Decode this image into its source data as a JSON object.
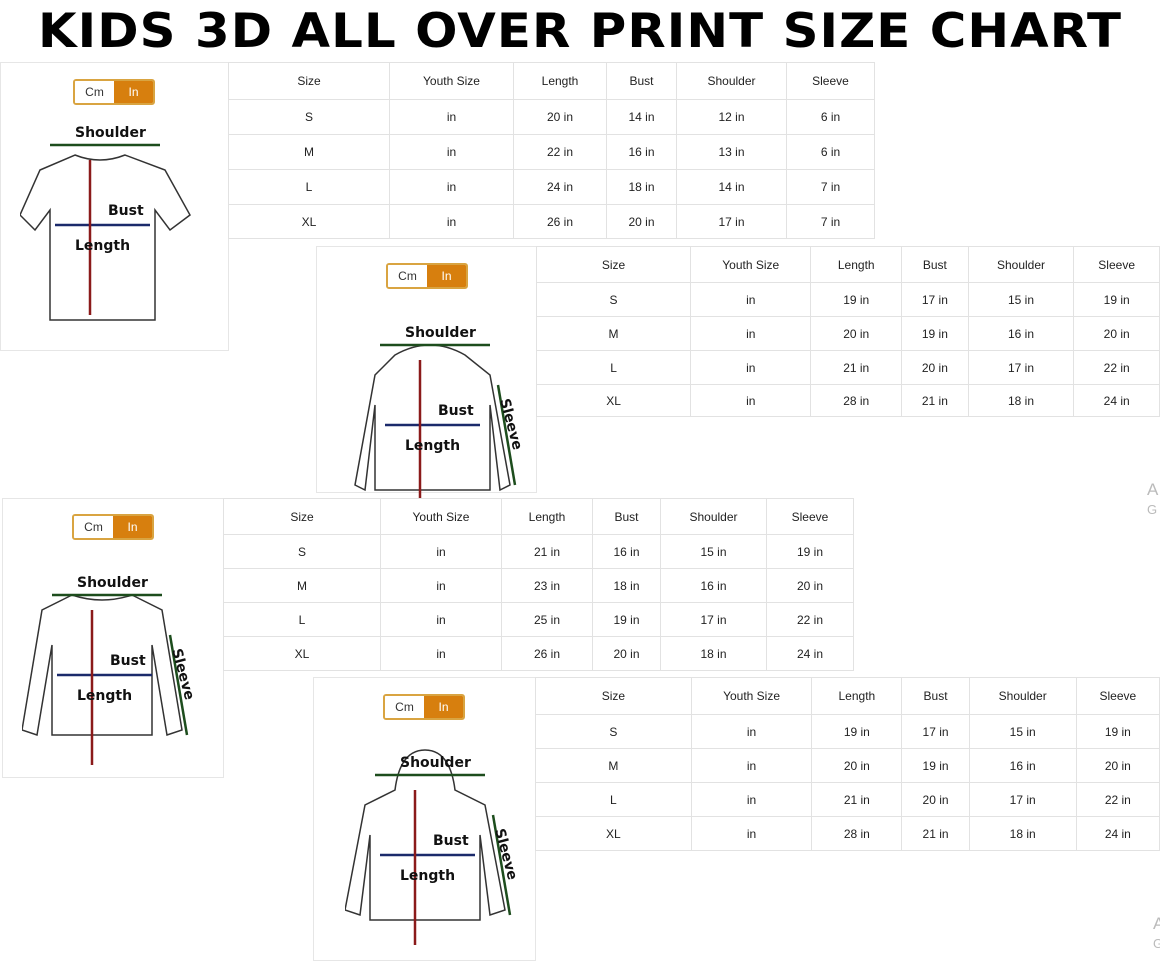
{
  "title": "KIDS 3D ALL OVER PRINT SIZE CHART",
  "unit_toggle": {
    "cm": "Cm",
    "in": "In",
    "active": "In",
    "active_color": "#d77f0e"
  },
  "labels": {
    "shoulder": "Shoulder",
    "bust": "Bust",
    "length": "Length",
    "sleeve": "Sleeve"
  },
  "columns": [
    "Size",
    "Youth Size",
    "Length",
    "Bust",
    "Shoulder",
    "Sleeve"
  ],
  "panels": [
    {
      "garment": "t-shirt",
      "rows": [
        [
          "S",
          "in",
          "20 in",
          "14 in",
          "12 in",
          "6 in"
        ],
        [
          "M",
          "in",
          "22 in",
          "16 in",
          "13 in",
          "6 in"
        ],
        [
          "L",
          "in",
          "24 in",
          "18 in",
          "14 in",
          "7 in"
        ],
        [
          "XL",
          "in",
          "26 in",
          "20 in",
          "17 in",
          "7 in"
        ]
      ]
    },
    {
      "garment": "zip-hoodie",
      "rows": [
        [
          "S",
          "in",
          "19 in",
          "17 in",
          "15 in",
          "19 in"
        ],
        [
          "M",
          "in",
          "20 in",
          "19 in",
          "16 in",
          "20 in"
        ],
        [
          "L",
          "in",
          "21 in",
          "20 in",
          "17 in",
          "22 in"
        ],
        [
          "XL",
          "in",
          "28 in",
          "21 in",
          "18 in",
          "24 in"
        ]
      ]
    },
    {
      "garment": "long-sleeve-shirt",
      "rows": [
        [
          "S",
          "in",
          "21 in",
          "16 in",
          "15 in",
          "19 in"
        ],
        [
          "M",
          "in",
          "23 in",
          "18 in",
          "16 in",
          "20 in"
        ],
        [
          "L",
          "in",
          "25 in",
          "19 in",
          "17 in",
          "22 in"
        ],
        [
          "XL",
          "in",
          "26 in",
          "20 in",
          "18 in",
          "24 in"
        ]
      ]
    },
    {
      "garment": "pullover-hoodie",
      "rows": [
        [
          "S",
          "in",
          "19 in",
          "17 in",
          "15 in",
          "19 in"
        ],
        [
          "M",
          "in",
          "20 in",
          "19 in",
          "16 in",
          "20 in"
        ],
        [
          "L",
          "in",
          "21 in",
          "20 in",
          "17 in",
          "22 in"
        ],
        [
          "XL",
          "in",
          "28 in",
          "21 in",
          "18 in",
          "24 in"
        ]
      ]
    }
  ],
  "watermark": [
    "A",
    "G",
    "A",
    "G"
  ]
}
